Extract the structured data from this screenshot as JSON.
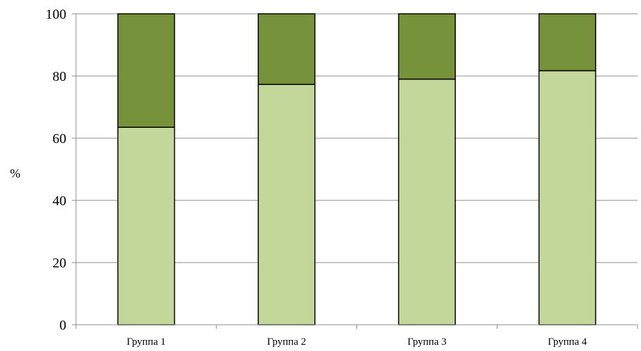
{
  "chart_data": {
    "type": "bar",
    "stacked": true,
    "title": "",
    "xlabel": "",
    "ylabel": "%",
    "categories": [
      "Группа 1",
      "Группа 2",
      "Группа 3",
      "Группа 4"
    ],
    "series": [
      {
        "values": [
          63.5,
          77.3,
          79.0,
          81.7
        ],
        "color": "#c4d79b"
      },
      {
        "values": [
          36.5,
          22.7,
          21.0,
          18.3
        ],
        "color": "#76933c"
      }
    ],
    "ylim": [
      0,
      100
    ],
    "yticks": [
      "0",
      "20",
      "40",
      "60",
      "80",
      "100"
    ],
    "grid": true,
    "legend": "none"
  }
}
